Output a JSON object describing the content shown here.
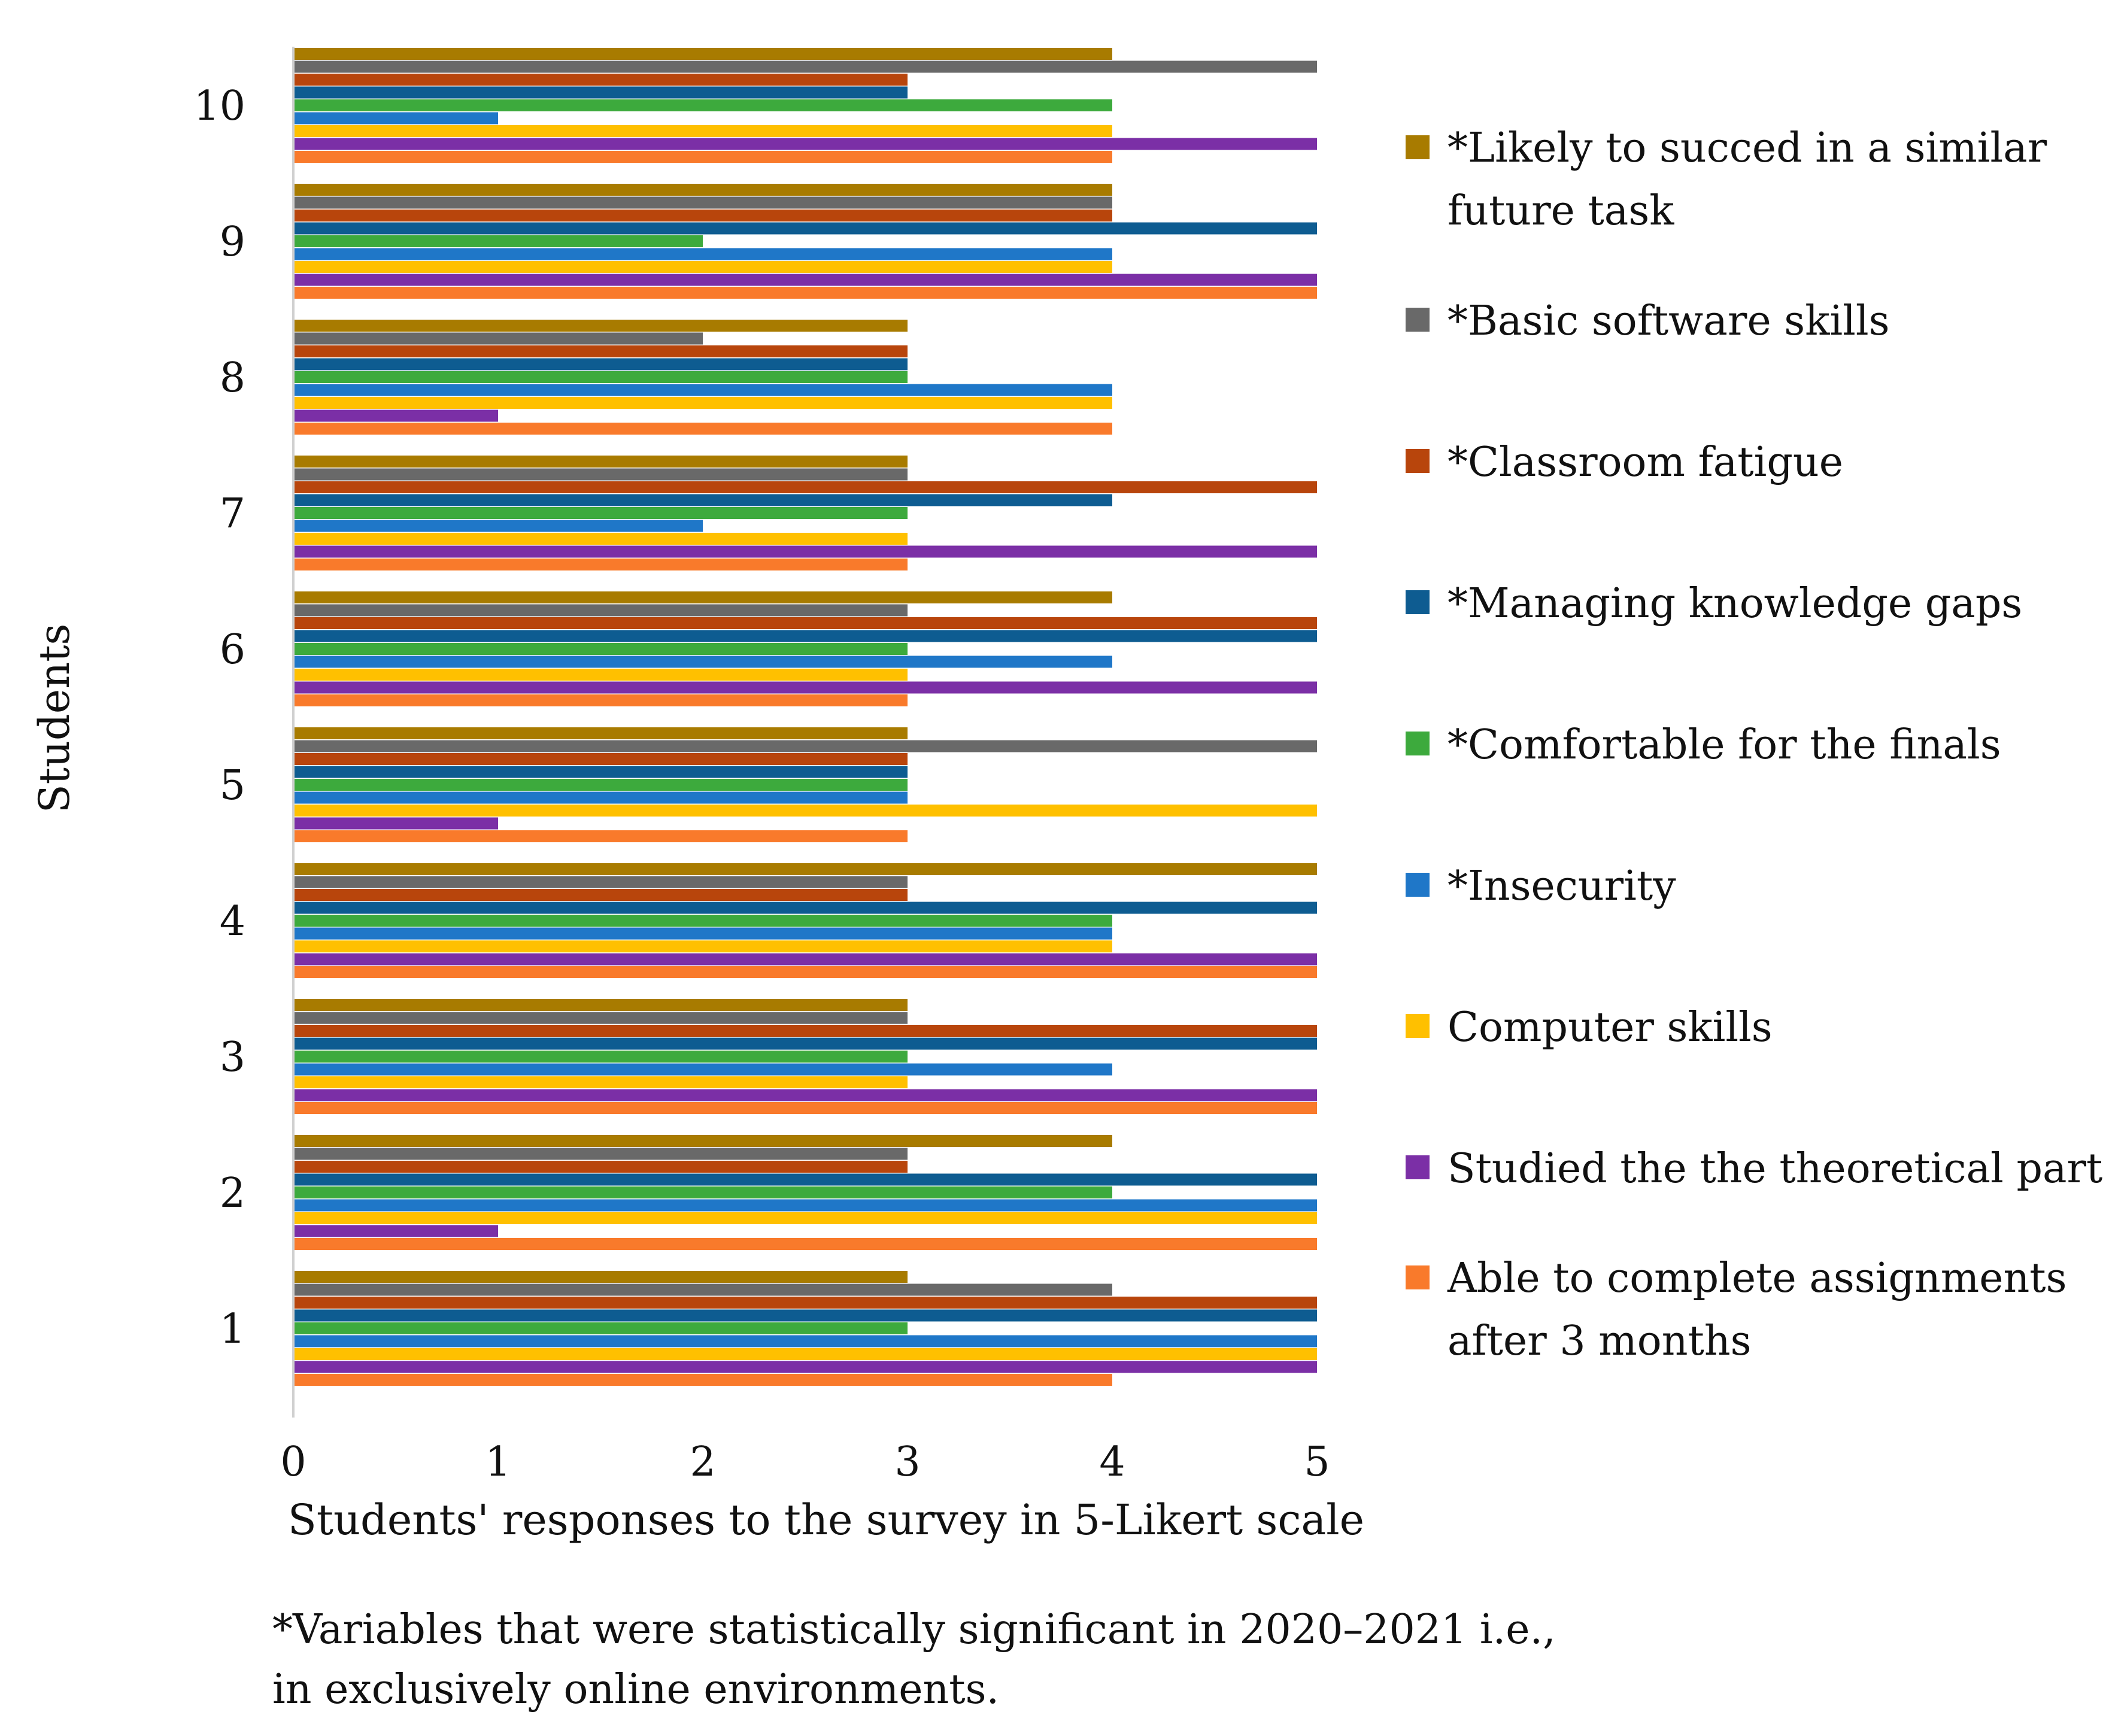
{
  "chart_data": {
    "type": "bar",
    "orientation": "horizontal",
    "xlabel": "Students' responses to the survey in 5-Likert scale",
    "ylabel": "Students",
    "xlim": [
      0,
      5
    ],
    "x_ticks": [
      "0",
      "1",
      "2",
      "3",
      "4",
      "5"
    ],
    "categories": [
      "1",
      "2",
      "3",
      "4",
      "5",
      "6",
      "7",
      "8",
      "9",
      "10"
    ],
    "grid": false,
    "legend_position": "right",
    "series": [
      {
        "name": "Able to complete assignments after 3 months",
        "legend_lines": [
          "Able to complete assignments",
          "after 3 months"
        ],
        "color": "#F97A2B",
        "values": [
          4,
          5,
          5,
          5,
          3,
          3,
          3,
          4,
          5,
          4
        ]
      },
      {
        "name": "Studied the the theoretical part",
        "legend_lines": [
          "Studied the the theoretical part"
        ],
        "color": "#7B2FA6",
        "values": [
          5,
          1,
          5,
          5,
          1,
          5,
          5,
          1,
          5,
          5
        ]
      },
      {
        "name": "Computer skills",
        "legend_lines": [
          "Computer skills"
        ],
        "color": "#FFC000",
        "values": [
          5,
          5,
          3,
          4,
          5,
          3,
          3,
          4,
          4,
          4
        ]
      },
      {
        "name": "*Insecurity",
        "legend_lines": [
          "*Insecurity"
        ],
        "color": "#1F77C8",
        "values": [
          5,
          5,
          4,
          4,
          3,
          4,
          2,
          4,
          4,
          1
        ]
      },
      {
        "name": "*Comfortable for the finals",
        "legend_lines": [
          "*Comfortable for the finals"
        ],
        "color": "#3DAA3D",
        "values": [
          3,
          4,
          3,
          4,
          3,
          3,
          3,
          3,
          2,
          4
        ]
      },
      {
        "name": "*Managing knowledge gaps",
        "legend_lines": [
          "*Managing knowledge gaps"
        ],
        "color": "#0E5C91",
        "values": [
          5,
          5,
          5,
          5,
          3,
          5,
          4,
          3,
          5,
          3
        ]
      },
      {
        "name": "*Classroom fatigue",
        "legend_lines": [
          "*Classroom fatigue"
        ],
        "color": "#B8450C",
        "values": [
          5,
          3,
          5,
          3,
          3,
          5,
          5,
          3,
          4,
          3
        ]
      },
      {
        "name": "*Basic software skills",
        "legend_lines": [
          "*Basic software skills"
        ],
        "color": "#696969",
        "values": [
          4,
          3,
          3,
          3,
          5,
          3,
          3,
          2,
          4,
          5
        ]
      },
      {
        "name": "*Likely to succed in a similar future task",
        "legend_lines": [
          "*Likely to succed in a similar",
          "future task"
        ],
        "color": "#A87B00",
        "values": [
          3,
          4,
          3,
          5,
          3,
          4,
          3,
          3,
          4,
          4
        ]
      }
    ],
    "footnote": [
      "*Variables that were statistically significant in 2020–2021 i.e.,",
      "in exclusively online environments."
    ]
  }
}
